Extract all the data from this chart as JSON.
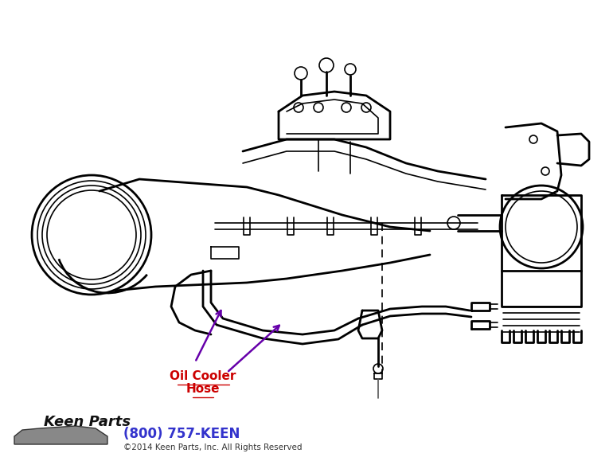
{
  "bg_color": "#ffffff",
  "line_color": "#000000",
  "arrow_color": "#6600aa",
  "label_color": "#cc0000",
  "label_text_line1": "Oil Cooler",
  "label_text_line2": "Hose",
  "phone_text": "(800) 757-KEEN",
  "phone_color": "#3333cc",
  "copyright_text": "©2014 Keen Parts, Inc. All Rights Reserved",
  "copyright_color": "#333333",
  "fig_width": 7.7,
  "fig_height": 5.79,
  "dpi": 100
}
